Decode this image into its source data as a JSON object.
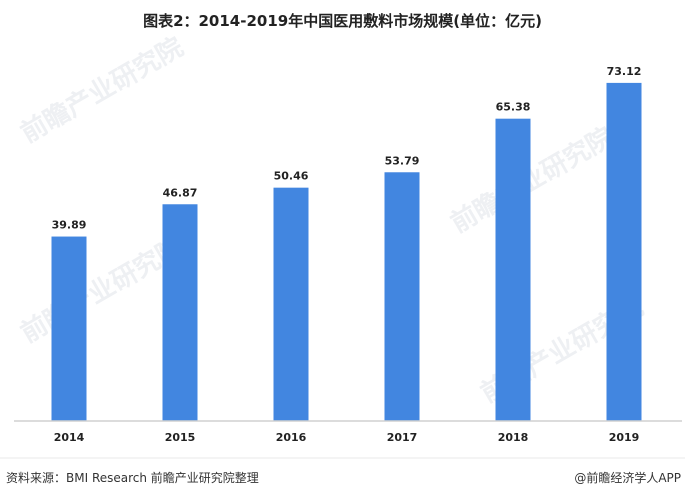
{
  "chart_data": {
    "type": "bar",
    "title": "图表2：2014-2019年中国医用敷料市场规模(单位：亿元)",
    "categories": [
      "2014",
      "2015",
      "2016",
      "2017",
      "2018",
      "2019"
    ],
    "values": [
      39.89,
      46.87,
      50.46,
      53.79,
      65.38,
      73.12
    ],
    "value_labels": [
      "39.89",
      "46.87",
      "50.46",
      "53.79",
      "65.38",
      "73.12"
    ],
    "xlabel": "",
    "ylabel": "",
    "ylim": [
      0,
      79.8
    ],
    "grid": false,
    "bar_color": "#4286e0"
  },
  "footer": {
    "source": "资料来源：BMI Research 前瞻产业研究院整理",
    "brand": "@前瞻经济学人APP"
  },
  "watermark": "前瞻产业研究院"
}
